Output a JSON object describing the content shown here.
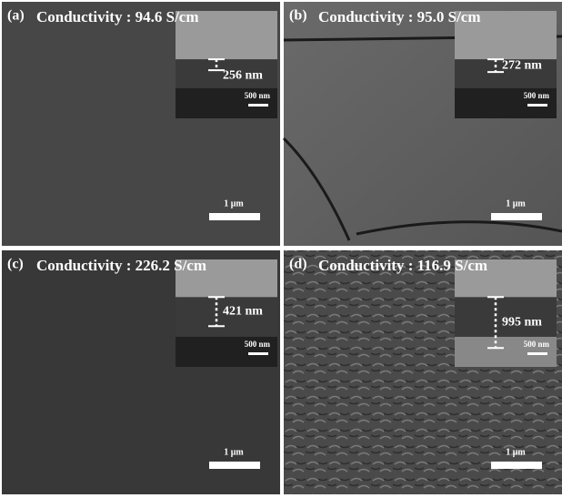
{
  "panels": [
    {
      "label": "(a)",
      "conductivity": "Conductivity : 94.6 S/cm",
      "thickness": "256 nm",
      "inset_scale": "500 nm",
      "scale": "1 μm"
    },
    {
      "label": "(b)",
      "conductivity": "Conductivity : 95.0 S/cm",
      "thickness": "272 nm",
      "inset_scale": "500 nm",
      "scale": "1 μm"
    },
    {
      "label": "(c)",
      "conductivity": "Conductivity : 226.2 S/cm",
      "thickness": "421 nm",
      "inset_scale": "500 nm",
      "scale": "1 μm"
    },
    {
      "label": "(d)",
      "conductivity": "Conductivity : 116.9 S/cm",
      "thickness": "995 nm",
      "inset_scale": "500 nm",
      "scale": "1 μm"
    }
  ]
}
